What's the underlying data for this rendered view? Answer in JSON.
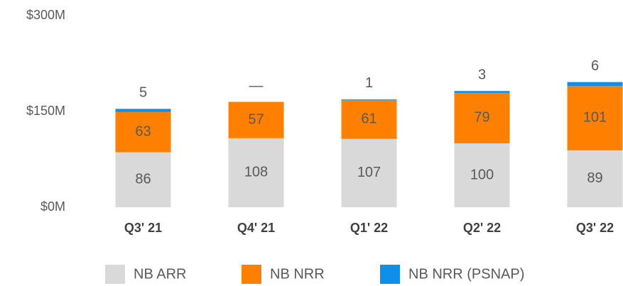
{
  "chart_data": {
    "type": "stacked-bar",
    "categories": [
      "Q3' 21",
      "Q4' 21",
      "Q1' 22",
      "Q2' 22",
      "Q3' 22"
    ],
    "series": [
      {
        "name": "NB ARR",
        "color": "#d9d9d9",
        "values": [
          86,
          108,
          107,
          100,
          89
        ]
      },
      {
        "name": "NB NRR",
        "color": "#ff8000",
        "values": [
          63,
          57,
          61,
          79,
          101
        ]
      },
      {
        "name": "NB NRR (PSNAP)",
        "color": "#0f8fe8",
        "values": [
          5,
          null,
          1,
          3,
          6
        ],
        "value_labels": [
          "5",
          "—",
          "1",
          "3",
          "6"
        ]
      }
    ],
    "ylim": [
      0,
      300
    ],
    "yticks": [
      {
        "value": 0,
        "label": "$0M"
      },
      {
        "value": 150,
        "label": "$150M"
      },
      {
        "value": 300,
        "label": "$300M"
      }
    ],
    "legend": "bottom"
  }
}
